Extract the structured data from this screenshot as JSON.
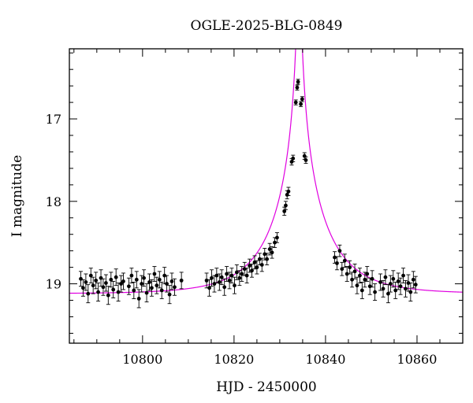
{
  "chart_data": {
    "type": "scatter",
    "title": "OGLE-2025-BLG-0849",
    "xlabel": "HJD - 2450000",
    "ylabel": "I magnitude",
    "xlim": [
      10784,
      10870
    ],
    "ylim": [
      19.72,
      16.15
    ],
    "y_inverted": true,
    "xticks": [
      10800,
      10820,
      10840,
      10860
    ],
    "yticks": [
      17,
      18,
      19
    ],
    "model_color": "#e000e0",
    "point_color": "#000000",
    "model": {
      "t0": 10834.2,
      "u0": 0.02,
      "tE": 12.0,
      "base_mag": 19.12,
      "blend_fraction": 1.0
    },
    "series": [
      {
        "points": [
          [
            10786.5,
            18.94,
            0.09
          ],
          [
            10787.0,
            19.05,
            0.1
          ],
          [
            10787.6,
            18.98,
            0.1
          ],
          [
            10788.1,
            19.12,
            0.11
          ],
          [
            10788.7,
            18.9,
            0.09
          ],
          [
            10789.2,
            19.02,
            0.1
          ],
          [
            10789.8,
            18.96,
            0.1
          ],
          [
            10790.3,
            19.1,
            0.11
          ],
          [
            10790.9,
            18.93,
            0.1
          ],
          [
            10791.4,
            19.04,
            0.1
          ],
          [
            10792.0,
            18.99,
            0.1
          ],
          [
            10792.5,
            19.14,
            0.11
          ],
          [
            10793.1,
            18.95,
            0.09
          ],
          [
            10793.6,
            19.07,
            0.1
          ],
          [
            10794.2,
            18.92,
            0.1
          ],
          [
            10794.7,
            19.1,
            0.11
          ],
          [
            10795.3,
            19.0,
            0.1
          ],
          [
            10795.8,
            18.97,
            0.1
          ],
          [
            10797.0,
            19.03,
            0.1
          ],
          [
            10797.6,
            18.9,
            0.09
          ],
          [
            10798.1,
            19.08,
            0.1
          ],
          [
            10798.7,
            18.95,
            0.1
          ],
          [
            10799.2,
            19.18,
            0.11
          ],
          [
            10799.8,
            19.0,
            0.1
          ],
          [
            10800.3,
            18.93,
            0.1
          ],
          [
            10800.9,
            19.11,
            0.11
          ],
          [
            10801.5,
            18.98,
            0.1
          ],
          [
            10802.0,
            19.05,
            0.1
          ],
          [
            10802.6,
            18.88,
            0.09
          ],
          [
            10803.1,
            19.02,
            0.1
          ],
          [
            10803.7,
            18.95,
            0.1
          ],
          [
            10804.2,
            19.08,
            0.1
          ],
          [
            10804.8,
            18.9,
            0.1
          ],
          [
            10805.3,
            19.0,
            0.1
          ],
          [
            10805.9,
            19.13,
            0.11
          ],
          [
            10806.4,
            18.97,
            0.1
          ],
          [
            10807.0,
            19.04,
            0.1
          ],
          [
            10808.5,
            18.96,
            0.1
          ],
          [
            10814.0,
            18.96,
            0.09
          ],
          [
            10814.6,
            19.05,
            0.1
          ],
          [
            10815.1,
            18.93,
            0.1
          ],
          [
            10815.7,
            19.0,
            0.1
          ],
          [
            10816.2,
            18.9,
            0.09
          ],
          [
            10816.8,
            18.98,
            0.1
          ],
          [
            10817.3,
            18.92,
            0.09
          ],
          [
            10817.9,
            19.04,
            0.1
          ],
          [
            10818.4,
            18.88,
            0.09
          ],
          [
            10819.0,
            18.96,
            0.1
          ],
          [
            10819.5,
            18.9,
            0.09
          ],
          [
            10820.1,
            19.02,
            0.1
          ],
          [
            10820.6,
            18.86,
            0.09
          ],
          [
            10821.2,
            18.93,
            0.09
          ],
          [
            10821.7,
            18.88,
            0.09
          ],
          [
            10822.3,
            18.82,
            0.08
          ],
          [
            10822.8,
            18.9,
            0.09
          ],
          [
            10823.4,
            18.78,
            0.08
          ],
          [
            10823.9,
            18.84,
            0.08
          ],
          [
            10824.5,
            18.74,
            0.08
          ],
          [
            10825.0,
            18.8,
            0.08
          ],
          [
            10825.6,
            18.7,
            0.07
          ],
          [
            10826.1,
            18.77,
            0.08
          ],
          [
            10826.7,
            18.64,
            0.07
          ],
          [
            10827.2,
            18.7,
            0.07
          ],
          [
            10827.8,
            18.58,
            0.07
          ],
          [
            10828.3,
            18.62,
            0.07
          ],
          [
            10828.9,
            18.5,
            0.06
          ],
          [
            10829.4,
            18.44,
            0.06
          ],
          [
            10831.0,
            18.12,
            0.05
          ],
          [
            10831.3,
            18.05,
            0.05
          ],
          [
            10831.6,
            17.92,
            0.05
          ],
          [
            10831.9,
            17.88,
            0.05
          ],
          [
            10832.6,
            17.52,
            0.04
          ],
          [
            10832.9,
            17.48,
            0.04
          ],
          [
            10833.5,
            16.8,
            0.03
          ],
          [
            10833.8,
            16.62,
            0.03
          ],
          [
            10834.0,
            16.55,
            0.03
          ],
          [
            10834.6,
            16.82,
            0.03
          ],
          [
            10834.9,
            16.76,
            0.03
          ],
          [
            10835.4,
            17.45,
            0.04
          ],
          [
            10835.7,
            17.5,
            0.04
          ],
          [
            10842.0,
            18.68,
            0.07
          ],
          [
            10842.5,
            18.75,
            0.08
          ],
          [
            10843.1,
            18.6,
            0.07
          ],
          [
            10843.6,
            18.82,
            0.08
          ],
          [
            10844.2,
            18.72,
            0.08
          ],
          [
            10844.7,
            18.88,
            0.09
          ],
          [
            10845.3,
            18.8,
            0.08
          ],
          [
            10845.8,
            18.95,
            0.09
          ],
          [
            10846.4,
            18.85,
            0.09
          ],
          [
            10846.9,
            19.02,
            0.1
          ],
          [
            10847.5,
            18.9,
            0.09
          ],
          [
            10848.0,
            19.08,
            0.1
          ],
          [
            10848.6,
            18.95,
            0.09
          ],
          [
            10849.1,
            18.88,
            0.09
          ],
          [
            10849.7,
            19.03,
            0.1
          ],
          [
            10850.2,
            18.94,
            0.1
          ],
          [
            10850.8,
            19.1,
            0.1
          ],
          [
            10852.0,
            18.98,
            0.1
          ],
          [
            10852.6,
            19.06,
            0.1
          ],
          [
            10853.1,
            18.92,
            0.09
          ],
          [
            10853.7,
            19.12,
            0.11
          ],
          [
            10854.2,
            19.0,
            0.1
          ],
          [
            10854.8,
            18.94,
            0.1
          ],
          [
            10855.3,
            19.08,
            0.1
          ],
          [
            10855.9,
            18.97,
            0.1
          ],
          [
            10856.4,
            19.03,
            0.1
          ],
          [
            10857.0,
            18.9,
            0.09
          ],
          [
            10857.5,
            19.06,
            0.1
          ],
          [
            10858.1,
            18.99,
            0.1
          ],
          [
            10858.6,
            19.1,
            0.11
          ],
          [
            10859.2,
            18.95,
            0.1
          ],
          [
            10859.7,
            19.01,
            0.1
          ]
        ]
      }
    ]
  }
}
